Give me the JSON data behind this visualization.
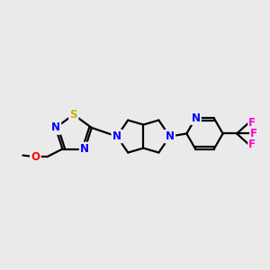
{
  "bg_color": "#EAEAEA",
  "bond_color": "#000000",
  "bond_width": 1.6,
  "figsize": [
    3.0,
    3.0
  ],
  "dpi": 100,
  "xlim": [
    0.0,
    9.5
  ],
  "ylim": [
    3.2,
    7.8
  ]
}
